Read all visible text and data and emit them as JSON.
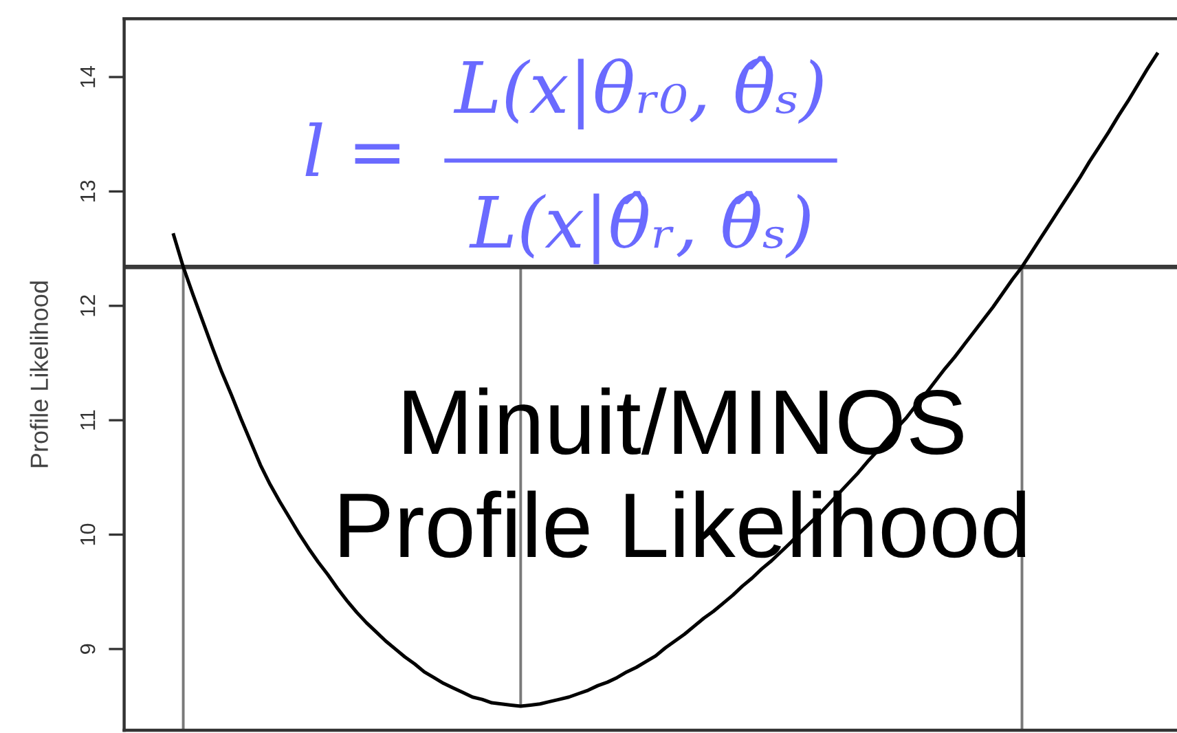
{
  "chart_data": {
    "type": "line",
    "ylabel": "Profile Likelihood",
    "categories": [
      null,
      null,
      null,
      null,
      null,
      null,
      null,
      null,
      null,
      null,
      null,
      null,
      null,
      null,
      null,
      null,
      null,
      null,
      null,
      null,
      null,
      null,
      null,
      null,
      null,
      null,
      null,
      null,
      null,
      null,
      null,
      null,
      null,
      null,
      null,
      null,
      null,
      null,
      null,
      null,
      null,
      null,
      null,
      null,
      null,
      null,
      null,
      null,
      null,
      null,
      null,
      null,
      null,
      null,
      null,
      null,
      null,
      null,
      null,
      null,
      null,
      null,
      null,
      null,
      null,
      null,
      null,
      null,
      null,
      null,
      null,
      null,
      null,
      null,
      null,
      null,
      null,
      null,
      null,
      null,
      null,
      null,
      null,
      null,
      null,
      null,
      null,
      null,
      null,
      null,
      null,
      null,
      null,
      null,
      null,
      null,
      null,
      null,
      null,
      null,
      null,
      null,
      null
    ],
    "series": [
      {
        "color": "#000000",
        "values": [
          12.62,
          12.34,
          12.1,
          11.87,
          11.64,
          11.42,
          11.22,
          11.01,
          10.81,
          10.61,
          10.44,
          10.29,
          10.15,
          10.01,
          9.88,
          9.76,
          9.65,
          9.53,
          9.42,
          9.32,
          9.23,
          9.15,
          9.07,
          9.0,
          8.93,
          8.87,
          8.8,
          8.75,
          8.7,
          8.66,
          8.62,
          8.58,
          8.56,
          8.53,
          8.52,
          8.51,
          8.5,
          8.51,
          8.52,
          8.54,
          8.56,
          8.58,
          8.61,
          8.64,
          8.68,
          8.71,
          8.75,
          8.8,
          8.84,
          8.89,
          8.94,
          9.01,
          9.07,
          9.13,
          9.2,
          9.27,
          9.33,
          9.4,
          9.47,
          9.55,
          9.62,
          9.7,
          9.77,
          9.85,
          9.93,
          10.02,
          10.1,
          10.18,
          10.27,
          10.36,
          10.45,
          10.54,
          10.64,
          10.73,
          10.83,
          10.93,
          11.02,
          11.13,
          11.23,
          11.34,
          11.45,
          11.55,
          11.66,
          11.77,
          11.88,
          11.99,
          12.11,
          12.23,
          12.34,
          12.47,
          12.6,
          12.73,
          12.86,
          12.99,
          13.12,
          13.26,
          13.39,
          13.52,
          13.66,
          13.79,
          13.93,
          14.07,
          14.2
        ]
      },
      {
        "type": "bar",
        "color": "#7a7a7a",
        "base": [
          null,
          8.29,
          null,
          null,
          null,
          null,
          null,
          null,
          null,
          null,
          null,
          null,
          null,
          null,
          null,
          null,
          null,
          null,
          null,
          null,
          null,
          null,
          null,
          null,
          null,
          null,
          null,
          null,
          null,
          null,
          null,
          null,
          null,
          null,
          null,
          null,
          8.5,
          null,
          null,
          null,
          null,
          null,
          null,
          null,
          null,
          null,
          null,
          null,
          null,
          null,
          null,
          null,
          null,
          null,
          null,
          null,
          null,
          null,
          null,
          null,
          null,
          null,
          null,
          null,
          null,
          null,
          null,
          null,
          null,
          null,
          null,
          null,
          null,
          null,
          null,
          null,
          null,
          null,
          null,
          null,
          null,
          null,
          null,
          null,
          null,
          null,
          null,
          null,
          8.29,
          null,
          null,
          null,
          null,
          null,
          null,
          null,
          null,
          null,
          null,
          null,
          null,
          null,
          null
        ],
        "values": [
          null,
          4.05,
          null,
          null,
          null,
          null,
          null,
          null,
          null,
          null,
          null,
          null,
          null,
          null,
          null,
          null,
          null,
          null,
          null,
          null,
          null,
          null,
          null,
          null,
          null,
          null,
          null,
          null,
          null,
          null,
          null,
          null,
          null,
          null,
          null,
          null,
          3.84,
          null,
          null,
          null,
          null,
          null,
          null,
          null,
          null,
          null,
          null,
          null,
          null,
          null,
          null,
          null,
          null,
          null,
          null,
          null,
          null,
          null,
          null,
          null,
          null,
          null,
          null,
          null,
          null,
          null,
          null,
          null,
          null,
          null,
          null,
          null,
          null,
          null,
          null,
          null,
          null,
          null,
          null,
          null,
          null,
          null,
          null,
          null,
          null,
          null,
          null,
          null,
          4.05,
          null,
          null,
          null,
          null,
          null,
          null,
          null,
          null,
          null,
          null,
          null,
          null,
          null,
          null
        ]
      }
    ],
    "ref_lines": [
      {
        "axis": "y",
        "value": 12.34,
        "color": "#3a3a3a"
      }
    ],
    "ylim": [
      8.29,
      14.51
    ],
    "yticks": [
      9,
      10,
      11,
      12,
      13,
      14
    ],
    "tick_labels": "y",
    "annotations": [
      "l =",
      "L(x|θᵣ₀, θ̂̂ₛ)",
      "L(x|θ̂ᵣ, θ̂ₛ)",
      "Minuit/MINOS",
      "Profile Likelihood"
    ]
  }
}
